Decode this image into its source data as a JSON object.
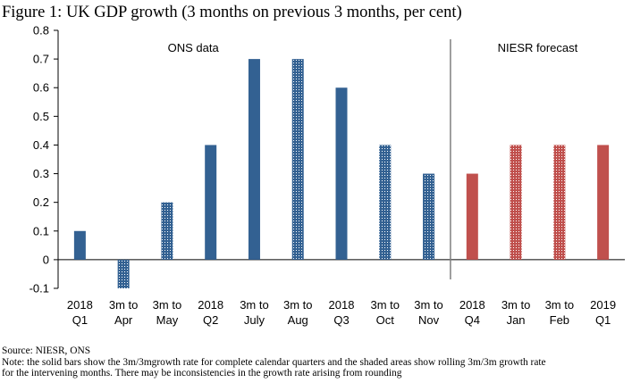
{
  "chart_data": {
    "type": "bar",
    "title": "Figure 1: UK GDP growth (3 months on previous 3 months, per cent)",
    "categories": [
      [
        "2018",
        "Q1"
      ],
      [
        "3m to",
        "Apr"
      ],
      [
        "3m to",
        "May"
      ],
      [
        "2018",
        "Q2"
      ],
      [
        "3m to",
        "July"
      ],
      [
        "3m to",
        "Aug"
      ],
      [
        "2018",
        "Q3"
      ],
      [
        "3m to",
        "Oct"
      ],
      [
        "3m to",
        "Nov"
      ],
      [
        "2018",
        "Q4"
      ],
      [
        "3m to",
        "Jan"
      ],
      [
        "3m to",
        "Feb"
      ],
      [
        "2019",
        "Q1"
      ]
    ],
    "values": [
      0.1,
      -0.1,
      0.2,
      0.4,
      0.7,
      0.7,
      0.6,
      0.4,
      0.3,
      0.3,
      0.4,
      0.4,
      0.4
    ],
    "bar_style": [
      "solid",
      "dotted",
      "dotted",
      "solid",
      "solid",
      "dotted",
      "solid",
      "dotted",
      "dotted",
      "solid",
      "dotted",
      "dotted",
      "solid"
    ],
    "bar_group": [
      "ons",
      "ons",
      "ons",
      "ons",
      "ons",
      "ons",
      "ons",
      "ons",
      "ons",
      "forecast",
      "forecast",
      "forecast",
      "forecast"
    ],
    "colors": {
      "ons": "#336192",
      "forecast": "#c0504d",
      "divider": "#7f7f7f"
    },
    "ylim": [
      -0.1,
      0.8
    ],
    "yticks": [
      "-0.1",
      "0",
      "0.1",
      "0.2",
      "0.3",
      "0.4",
      "0.5",
      "0.6",
      "0.7",
      "0.8"
    ],
    "xlabel": "",
    "ylabel": "",
    "grid": false,
    "annotations": [
      {
        "text": "ONS data",
        "group": "ons"
      },
      {
        "text": "NIESR forecast",
        "group": "forecast"
      }
    ]
  },
  "footer": {
    "source": "Source: NIESR, ONS",
    "note_line1": "Note: the solid bars show the 3m/3mgrowth rate for complete calendar quarters and the shaded areas show rolling 3m/3m growth rate",
    "note_line2": "for the intervening months. There may be inconsistencies in the growth rate arising from rounding"
  }
}
